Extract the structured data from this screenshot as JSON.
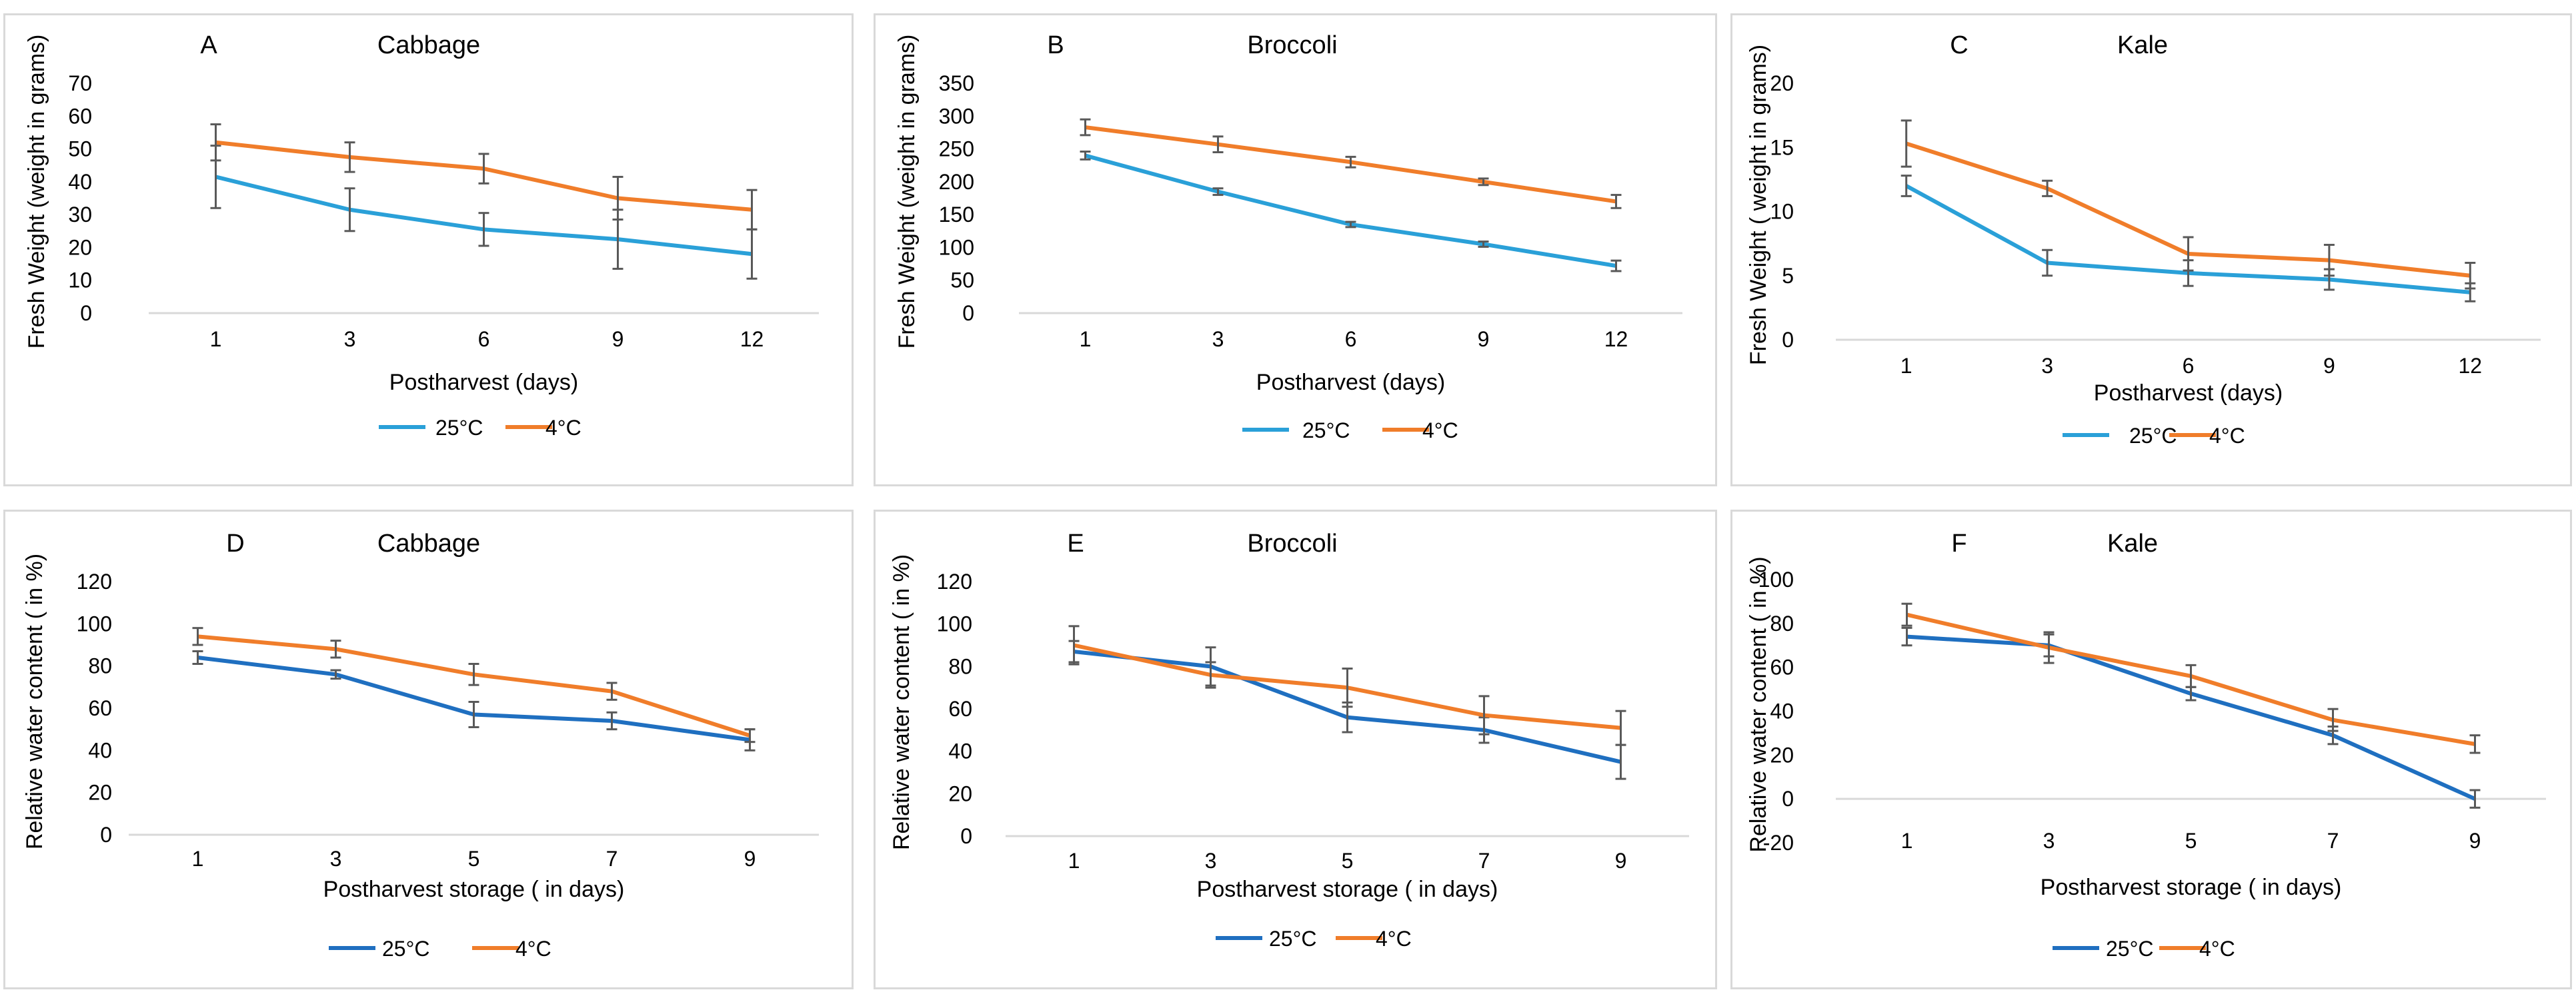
{
  "chart_data": [
    {
      "type": "line",
      "panel_label": "A",
      "title": "Cabbage",
      "xlabel": "Postharvest (days)",
      "ylabel": "Fresh Weight (weight in grams)",
      "categories": [
        "1",
        "3",
        "6",
        "9",
        "12"
      ],
      "ylim": [
        0,
        70
      ],
      "yticks": [
        0,
        10,
        20,
        30,
        40,
        50,
        60,
        70
      ],
      "series": [
        {
          "name": "25°C",
          "color": "#2aa0d8",
          "values": [
            41.5,
            31.5,
            25.5,
            22.5,
            18
          ],
          "errors": [
            9.5,
            6.5,
            5,
            9,
            7.5
          ]
        },
        {
          "name": "4°C",
          "color": "#f07d2a",
          "values": [
            52,
            47.5,
            44,
            35,
            31.5
          ],
          "errors": [
            5.5,
            4.5,
            4.5,
            6.5,
            6
          ]
        }
      ]
    },
    {
      "type": "line",
      "panel_label": "B",
      "title": "Broccoli",
      "xlabel": "Postharvest (days)",
      "ylabel": "Fresh Weight (weight in grams)",
      "categories": [
        "1",
        "3",
        "6",
        "9",
        "12"
      ],
      "ylim": [
        0,
        350
      ],
      "yticks": [
        0,
        50,
        100,
        150,
        200,
        250,
        300,
        350
      ],
      "series": [
        {
          "name": "25°C",
          "color": "#2aa0d8",
          "values": [
            240,
            185,
            135,
            105,
            72
          ],
          "errors": [
            6,
            5,
            4,
            4,
            8
          ]
        },
        {
          "name": "4°C",
          "color": "#f07d2a",
          "values": [
            283,
            257,
            230,
            200,
            170
          ],
          "errors": [
            12,
            12,
            8,
            5,
            10
          ]
        }
      ]
    },
    {
      "type": "line",
      "panel_label": "C",
      "title": "Kale",
      "xlabel": "Postharvest (days)",
      "ylabel": "Fresh Weight ( weight in grams)",
      "categories": [
        "1",
        "3",
        "6",
        "9",
        "12"
      ],
      "ylim": [
        0,
        20
      ],
      "yticks": [
        0,
        5,
        10,
        15,
        20
      ],
      "series": [
        {
          "name": "25°C",
          "color": "#2aa0d8",
          "values": [
            12,
            6,
            5.2,
            4.7,
            3.7
          ],
          "errors": [
            0.8,
            1,
            1,
            0.8,
            0.7
          ]
        },
        {
          "name": "4°C",
          "color": "#f07d2a",
          "values": [
            15.3,
            11.8,
            6.7,
            6.2,
            5
          ],
          "errors": [
            1.8,
            0.6,
            1.3,
            1.2,
            1
          ]
        }
      ]
    },
    {
      "type": "line",
      "panel_label": "D",
      "title": "Cabbage",
      "xlabel": "Postharvest storage ( in days)",
      "ylabel": "Relative water content ( in %)",
      "categories": [
        "1",
        "3",
        "5",
        "7",
        "9"
      ],
      "ylim": [
        0,
        120
      ],
      "yticks": [
        0,
        20,
        40,
        60,
        80,
        100,
        120
      ],
      "series": [
        {
          "name": "25°C",
          "color": "#1f6fc0",
          "values": [
            84,
            76,
            57,
            54,
            45
          ],
          "errors": [
            3,
            2,
            6,
            4,
            5
          ]
        },
        {
          "name": "4°C",
          "color": "#f07d2a",
          "values": [
            94,
            88,
            76,
            68,
            47
          ],
          "errors": [
            4,
            4,
            5,
            4,
            3
          ]
        }
      ]
    },
    {
      "type": "line",
      "panel_label": "E",
      "title": "Broccoli",
      "xlabel": "Postharvest storage ( in days)",
      "ylabel": "Relative water content ( in %)",
      "categories": [
        "1",
        "3",
        "5",
        "7",
        "9"
      ],
      "ylim": [
        0,
        120
      ],
      "yticks": [
        0,
        20,
        40,
        60,
        80,
        100,
        120
      ],
      "series": [
        {
          "name": "25°C",
          "color": "#1f6fc0",
          "values": [
            87,
            80,
            56,
            50,
            35
          ],
          "errors": [
            5,
            9,
            7,
            6,
            8
          ]
        },
        {
          "name": "4°C",
          "color": "#f07d2a",
          "values": [
            90,
            76,
            70,
            57,
            51
          ],
          "errors": [
            9,
            6,
            9,
            9,
            8
          ]
        }
      ]
    },
    {
      "type": "line",
      "panel_label": "F",
      "title": "Kale",
      "xlabel": "Postharvest storage ( in days)",
      "ylabel": "Relative water content ( in %)",
      "categories": [
        "1",
        "3",
        "5",
        "7",
        "9"
      ],
      "ylim": [
        -20,
        100
      ],
      "yticks": [
        -20,
        0,
        20,
        40,
        60,
        80,
        100
      ],
      "series": [
        {
          "name": "25°C",
          "color": "#1f6fc0",
          "values": [
            74,
            70,
            48,
            29,
            0
          ],
          "errors": [
            4,
            5,
            3,
            4,
            4
          ]
        },
        {
          "name": "4°C",
          "color": "#f07d2a",
          "values": [
            84,
            69,
            56,
            36,
            25
          ],
          "errors": [
            5,
            7,
            5,
            5,
            4
          ]
        }
      ]
    }
  ]
}
